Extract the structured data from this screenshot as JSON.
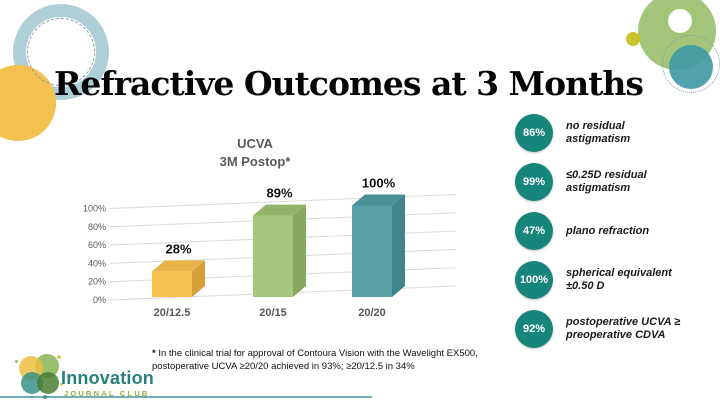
{
  "slide": {
    "title": "Refractive Outcomes at 3 Months"
  },
  "chart_data": {
    "type": "bar",
    "style": "3d",
    "title": "UCVA",
    "subtitle": "3M Postop*",
    "categories": [
      "20/12.5",
      "20/15",
      "20/20"
    ],
    "values": [
      28,
      89,
      100
    ],
    "data_labels": [
      "28%",
      "89%",
      "100%"
    ],
    "yticks": [
      0,
      20,
      40,
      60,
      80,
      100
    ],
    "ytick_labels": [
      "0%",
      "20%",
      "40%",
      "60%",
      "80%",
      "100%"
    ],
    "ylim": [
      0,
      100
    ],
    "grid": true,
    "legend": false,
    "bar_colors": {
      "front": [
        "#F5C24F",
        "#A5C77E",
        "#58A2A7"
      ],
      "top": [
        "#E7B447",
        "#92B368",
        "#4A9096"
      ],
      "side": [
        "#D79F37",
        "#87A95D",
        "#3F858B"
      ]
    }
  },
  "stats": [
    {
      "value": "86%",
      "lines": [
        "no residual",
        "astigmatism"
      ]
    },
    {
      "value": "99%",
      "lines": [
        "≤0.25D residual",
        "astigmatism"
      ]
    },
    {
      "value": "47%",
      "lines": [
        "plano refraction"
      ]
    },
    {
      "value": "100%",
      "lines": [
        "spherical equivalent",
        "±0.50 D"
      ]
    },
    {
      "value": "92%",
      "lines": [
        "postoperative UCVA ≥",
        "preoperative CDVA"
      ]
    }
  ],
  "footnote": {
    "marker": "*",
    "line1": "In the clinical trial for approval of Contoura Vision with the Wavelight EX500,",
    "line2": "postoperative UCVA ≥20/20 achieved in 93%; ≥20/12.5 in 34%"
  },
  "logo": {
    "name": "Innovation",
    "tagline": "JOURNAL CLUB"
  },
  "colors": {
    "badge_teal": "#18857B",
    "logo_teal": "#27807F",
    "logo_green": "#8CB43F",
    "accent_line": "#4C9BA3",
    "gridline": "#D9D9D9",
    "axis_text": "#595959"
  }
}
